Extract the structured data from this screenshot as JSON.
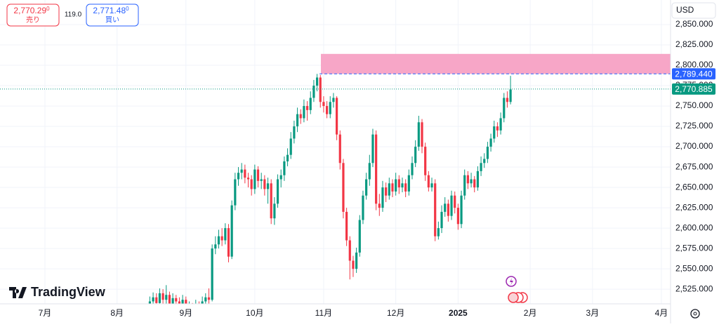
{
  "header": {
    "sell_price": "2,770.29",
    "sell_super": "0",
    "sell_label": "売り",
    "spread": "119.0",
    "buy_price": "2,771.48",
    "buy_super": "0",
    "buy_label": "買い",
    "currency": "USD",
    "brand": "TradingView"
  },
  "chart_data": {
    "type": "candlestick",
    "up_color": "#089981",
    "down_color": "#f23645",
    "grid": true,
    "xlim": [
      -45.7,
      158.8
    ],
    "xticks": [
      {
        "value": -32,
        "label": "7月"
      },
      {
        "value": -10,
        "label": "8月"
      },
      {
        "value": 11,
        "label": "9月"
      },
      {
        "value": 32,
        "label": "10月"
      },
      {
        "value": 53,
        "label": "11月"
      },
      {
        "value": 75,
        "label": "12月"
      },
      {
        "value": 94,
        "label": "2025"
      },
      {
        "value": 116,
        "label": "2月"
      },
      {
        "value": 135,
        "label": "3月"
      },
      {
        "value": 156,
        "label": "4月"
      }
    ],
    "ylim": [
      2507,
      2880.2
    ],
    "yticks": [
      {
        "value": 2525,
        "label": "2,525.000"
      },
      {
        "value": 2550,
        "label": "2,550.000"
      },
      {
        "value": 2575,
        "label": "2,575.000"
      },
      {
        "value": 2600,
        "label": "2,600.000"
      },
      {
        "value": 2625,
        "label": "2,625.000"
      },
      {
        "value": 2650,
        "label": "2,650.000"
      },
      {
        "value": 2675,
        "label": "2,675.000"
      },
      {
        "value": 2700,
        "label": "2,700.000"
      },
      {
        "value": 2725,
        "label": "2,725.000"
      },
      {
        "value": 2750,
        "label": "2,750.000"
      },
      {
        "value": 2775,
        "label": "2,775.000"
      },
      {
        "value": 2800,
        "label": "2,800.000"
      },
      {
        "value": 2825,
        "label": "2,825.000"
      },
      {
        "value": 2850,
        "label": "2,850.000"
      }
    ],
    "zone": {
      "from": 2789.44,
      "to": 2814,
      "color": "#f7a1c4"
    },
    "price_lines": [
      {
        "value": 2789.44,
        "label": "2,789.440",
        "color": "#2962ff"
      },
      {
        "value": 2770.885,
        "label": "2,770.885",
        "color": "#089981"
      }
    ],
    "open": [
      2505,
      2510,
      2515,
      2508,
      2520,
      2512,
      2518,
      2506,
      2514,
      2510,
      2505,
      2512,
      2500,
      2504,
      2498,
      2506,
      2502,
      2510,
      2515,
      2512,
      2575,
      2580,
      2590,
      2585,
      2600,
      2565,
      2628,
      2660,
      2668,
      2672,
      2662,
      2660,
      2648,
      2672,
      2658,
      2660,
      2648,
      2655,
      2612,
      2630,
      2660,
      2665,
      2682,
      2690,
      2710,
      2725,
      2740,
      2735,
      2750,
      2745,
      2760,
      2775,
      2785,
      2755,
      2750,
      2740,
      2755,
      2760,
      2715,
      2680,
      2620,
      2585,
      2560,
      2550,
      2570,
      2610,
      2640,
      2660,
      2680,
      2715,
      2630,
      2625,
      2650,
      2640,
      2655,
      2645,
      2660,
      2650,
      2655,
      2645,
      2665,
      2680,
      2700,
      2730,
      2700,
      2665,
      2650,
      2655,
      2590,
      2600,
      2620,
      2630,
      2615,
      2640,
      2625,
      2605,
      2640,
      2665,
      2655,
      2660,
      2650,
      2670,
      2680,
      2685,
      2700,
      2710,
      2725,
      2720,
      2735,
      2760,
      2755
    ],
    "high": [
      2516,
      2521,
      2520,
      2526,
      2525,
      2530,
      2522,
      2520,
      2518,
      2515,
      2518,
      2516,
      2510,
      2508,
      2512,
      2510,
      2516,
      2520,
      2526,
      2580,
      2590,
      2598,
      2600,
      2606,
      2605,
      2634,
      2668,
      2675,
      2680,
      2678,
      2668,
      2665,
      2678,
      2676,
      2668,
      2665,
      2662,
      2660,
      2638,
      2666,
      2672,
      2688,
      2698,
      2718,
      2732,
      2748,
      2746,
      2758,
      2756,
      2768,
      2782,
      2789.44,
      2788,
      2762,
      2756,
      2762,
      2766,
      2762,
      2720,
      2685,
      2625,
      2590,
      2566,
      2576,
      2616,
      2646,
      2668,
      2690,
      2722,
      2720,
      2642,
      2658,
      2656,
      2662,
      2660,
      2668,
      2665,
      2662,
      2660,
      2672,
      2688,
      2708,
      2738,
      2734,
      2705,
      2670,
      2662,
      2660,
      2608,
      2628,
      2638,
      2635,
      2646,
      2645,
      2630,
      2646,
      2672,
      2670,
      2668,
      2664,
      2676,
      2688,
      2692,
      2706,
      2716,
      2732,
      2730,
      2742,
      2766,
      2768,
      2787
    ],
    "low": [
      2500,
      2504,
      2503,
      2502,
      2507,
      2507,
      2500,
      2501,
      2504,
      2499,
      2500,
      2494,
      2495,
      2492,
      2494,
      2496,
      2498,
      2505,
      2506,
      2510,
      2568,
      2575,
      2578,
      2580,
      2558,
      2562,
      2622,
      2652,
      2660,
      2655,
      2650,
      2640,
      2642,
      2650,
      2648,
      2640,
      2630,
      2605,
      2604,
      2625,
      2650,
      2658,
      2676,
      2685,
      2704,
      2718,
      2728,
      2730,
      2732,
      2740,
      2755,
      2768,
      2748,
      2742,
      2735,
      2735,
      2748,
      2708,
      2672,
      2612,
      2578,
      2537,
      2540,
      2545,
      2565,
      2605,
      2635,
      2652,
      2675,
      2622,
      2615,
      2620,
      2632,
      2635,
      2638,
      2640,
      2642,
      2644,
      2638,
      2640,
      2660,
      2675,
      2695,
      2692,
      2658,
      2645,
      2645,
      2584,
      2586,
      2594,
      2614,
      2608,
      2610,
      2618,
      2598,
      2600,
      2635,
      2648,
      2650,
      2644,
      2646,
      2664,
      2674,
      2680,
      2694,
      2705,
      2712,
      2715,
      2730,
      2748,
      2752
    ],
    "close": [
      2510,
      2515,
      2508,
      2520,
      2512,
      2518,
      2506,
      2514,
      2510,
      2505,
      2512,
      2500,
      2504,
      2498,
      2506,
      2502,
      2510,
      2515,
      2512,
      2575,
      2580,
      2590,
      2585,
      2600,
      2565,
      2628,
      2660,
      2668,
      2672,
      2662,
      2660,
      2648,
      2672,
      2658,
      2660,
      2648,
      2655,
      2612,
      2630,
      2660,
      2665,
      2682,
      2690,
      2710,
      2725,
      2740,
      2735,
      2750,
      2745,
      2760,
      2775,
      2785,
      2755,
      2750,
      2740,
      2755,
      2760,
      2715,
      2680,
      2620,
      2585,
      2560,
      2550,
      2570,
      2610,
      2640,
      2660,
      2680,
      2715,
      2630,
      2625,
      2650,
      2640,
      2655,
      2645,
      2660,
      2650,
      2655,
      2645,
      2665,
      2680,
      2700,
      2730,
      2700,
      2665,
      2650,
      2655,
      2590,
      2600,
      2620,
      2630,
      2615,
      2640,
      2625,
      2605,
      2640,
      2665,
      2655,
      2660,
      2650,
      2670,
      2680,
      2685,
      2700,
      2710,
      2725,
      2720,
      2735,
      2760,
      2755,
      2770.29
    ]
  }
}
